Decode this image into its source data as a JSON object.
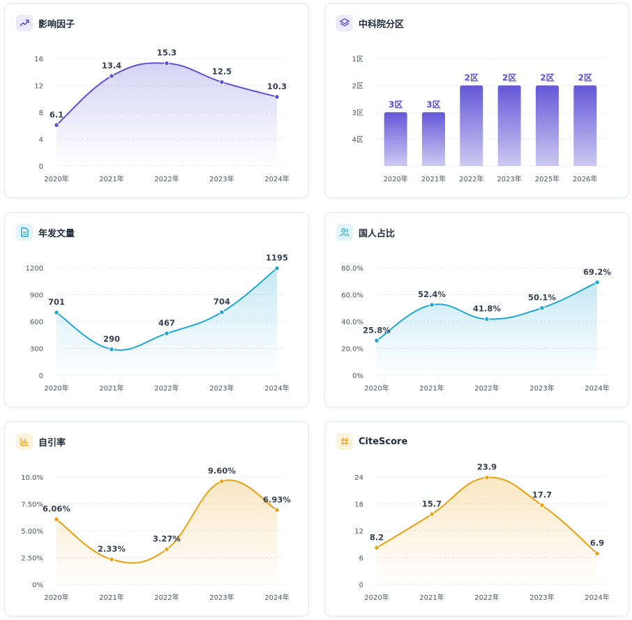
{
  "colors": {
    "purple": "#5b4fd6",
    "purple_light": "#c9c3f5",
    "blue": "#1ea6d6",
    "orange": "#eaa00f"
  },
  "panels": [
    {
      "id": "impact_factor",
      "title": "影响因子",
      "icon": "trend-up-icon",
      "color": "#5b4fd6",
      "icon_bg": "#eeeafd",
      "chart_data": {
        "type": "line",
        "categories": [
          "2020年",
          "2021年",
          "2022年",
          "2023年",
          "2024年"
        ],
        "values": [
          6.1,
          13.4,
          15.3,
          12.5,
          10.3
        ],
        "labels": [
          "6.1",
          "13.4",
          "15.3",
          "12.5",
          "10.3"
        ],
        "yticks": [
          "0",
          "4",
          "8",
          "12",
          "16"
        ],
        "ylim": [
          0,
          16
        ]
      }
    },
    {
      "id": "cas_zone",
      "title": "中科院分区",
      "icon": "layers-icon",
      "color": "#5b4fd6",
      "icon_bg": "#eeeafd",
      "chart_data": {
        "type": "bar",
        "categories": [
          "2020年",
          "2021年",
          "2022年",
          "2023年",
          "2025年",
          "2026年"
        ],
        "values": [
          3,
          3,
          2,
          2,
          2,
          2
        ],
        "labels": [
          "3区",
          "3区",
          "2区",
          "2区",
          "2区",
          "2区"
        ],
        "yticks": [
          "1区",
          "2区",
          "3区",
          "4区"
        ],
        "ylim": [
          1,
          4
        ],
        "inverted": true
      }
    },
    {
      "id": "annual_articles",
      "title": "年发文量",
      "icon": "document-icon",
      "color": "#1ea6d6",
      "icon_bg": "#e3f4fb",
      "chart_data": {
        "type": "line",
        "categories": [
          "2020年",
          "2021年",
          "2022年",
          "2023年",
          "2024年"
        ],
        "values": [
          701,
          290,
          467,
          704,
          1195
        ],
        "labels": [
          "701",
          "290",
          "467",
          "704",
          "1195"
        ],
        "yticks": [
          "0",
          "300",
          "600",
          "900",
          "1200"
        ],
        "ylim": [
          0,
          1200
        ]
      }
    },
    {
      "id": "domestic_ratio",
      "title": "国人占比",
      "icon": "users-icon",
      "color": "#1ea6d6",
      "icon_bg": "#e3f4fb",
      "chart_data": {
        "type": "line",
        "categories": [
          "2020年",
          "2021年",
          "2022年",
          "2023年",
          "2024年"
        ],
        "values": [
          25.8,
          52.4,
          41.8,
          50.1,
          69.2
        ],
        "labels": [
          "25.8%",
          "52.4%",
          "41.8%",
          "50.1%",
          "69.2%"
        ],
        "yticks": [
          "0%",
          "20.0%",
          "40.0%",
          "60.0%",
          "80.0%"
        ],
        "ylim": [
          0,
          80
        ]
      }
    },
    {
      "id": "self_citation",
      "title": "自引率",
      "icon": "bar-chart-icon",
      "color": "#eaa00f",
      "icon_bg": "#fdf3dc",
      "chart_data": {
        "type": "line",
        "categories": [
          "2020年",
          "2021年",
          "2022年",
          "2023年",
          "2024年"
        ],
        "values": [
          6.06,
          2.33,
          3.27,
          9.6,
          6.93
        ],
        "labels": [
          "6.06%",
          "2.33%",
          "3.27%",
          "9.60%",
          "6.93%"
        ],
        "yticks": [
          "0%",
          "2.50%",
          "5.00%",
          "7.50%",
          "10.0%"
        ],
        "ylim": [
          0,
          10
        ]
      }
    },
    {
      "id": "citescore",
      "title": "CiteScore",
      "icon": "hash-icon",
      "color": "#eaa00f",
      "icon_bg": "#fdf3dc",
      "chart_data": {
        "type": "line",
        "categories": [
          "2020年",
          "2021年",
          "2022年",
          "2023年",
          "2024年"
        ],
        "values": [
          8.2,
          15.7,
          23.9,
          17.7,
          6.9
        ],
        "labels": [
          "8.2",
          "15.7",
          "23.9",
          "17.7",
          "6.9"
        ],
        "yticks": [
          "0",
          "6",
          "12",
          "18",
          "24"
        ],
        "ylim": [
          0,
          24
        ]
      }
    }
  ]
}
